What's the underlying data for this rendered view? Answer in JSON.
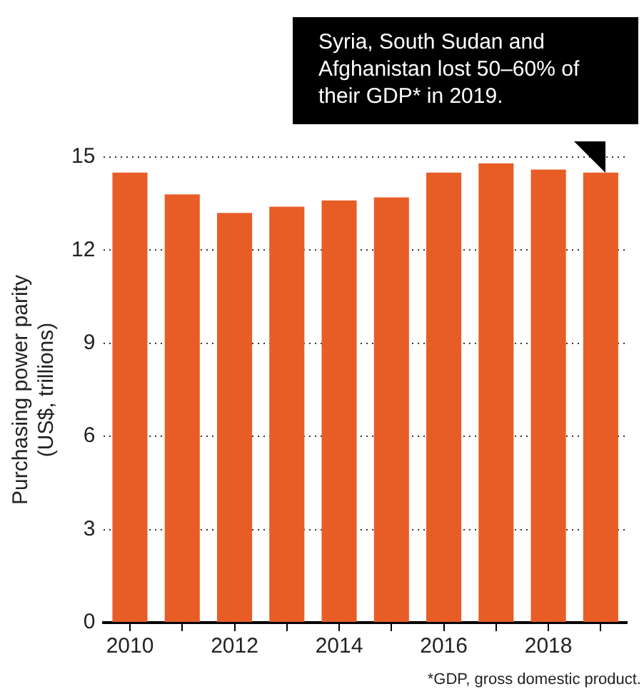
{
  "chart_data": {
    "type": "bar",
    "ylabel": "Purchasing power parity\n(US$, trillions)",
    "categories": [
      "2010",
      null,
      "2012",
      null,
      "2014",
      null,
      "2016",
      null,
      "2018",
      null
    ],
    "values": [
      14.5,
      13.8,
      13.2,
      13.4,
      13.6,
      13.7,
      14.5,
      14.8,
      14.6,
      14.5
    ],
    "color": "#e85d26",
    "ylim": [
      0,
      15
    ],
    "yticks": [
      0,
      3,
      6,
      9,
      12,
      15
    ],
    "grid": "y",
    "legend": false,
    "annotations": [
      "Syria, South Sudan and Afghanistan lost 50–60% of their GDP* in 2019.",
      "*GDP, gross domestic product."
    ]
  }
}
